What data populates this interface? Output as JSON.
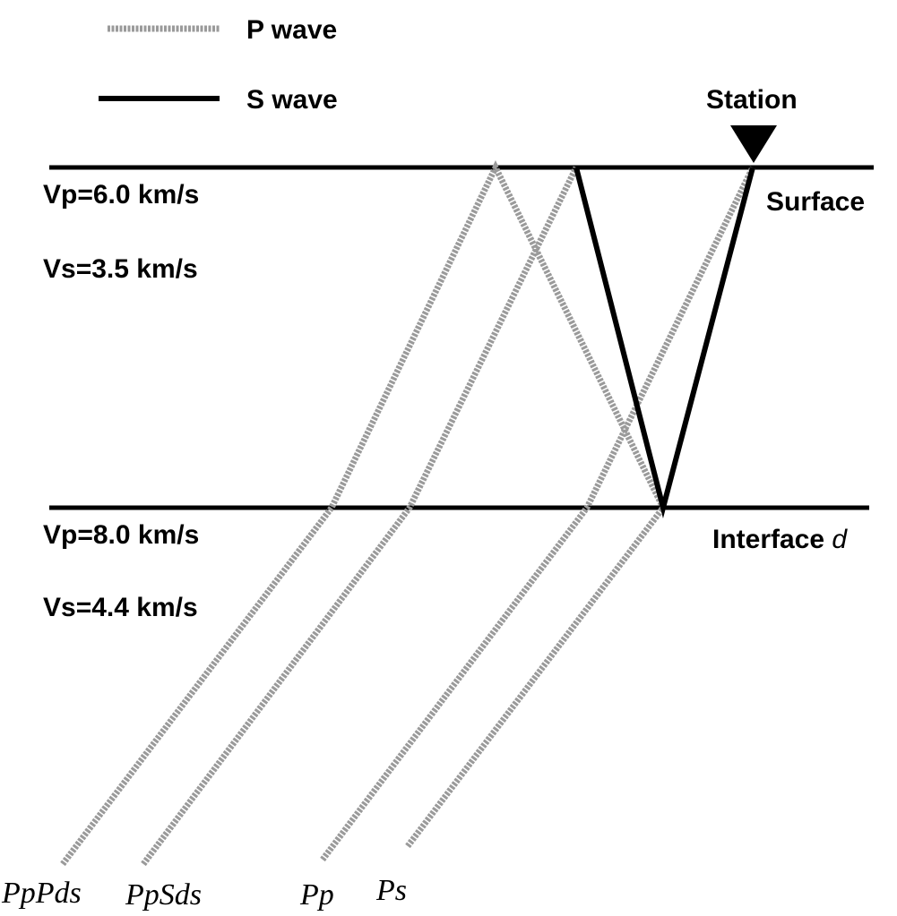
{
  "legend": [
    {
      "label": "P wave"
    },
    {
      "label": "S wave"
    }
  ],
  "station": "Station",
  "surface": "Surface",
  "interface": {
    "text": "Interface",
    "symbol": "d"
  },
  "upper_layer": {
    "vp": "Vp=6.0 km/s",
    "vs": "Vs=3.5 km/s"
  },
  "lower_layer": {
    "vp": "Vp=8.0 km/s",
    "vs": "Vs=4.4 km/s"
  },
  "rays": [
    "PpPds",
    "PpSds",
    "Pp",
    "Ps"
  ]
}
